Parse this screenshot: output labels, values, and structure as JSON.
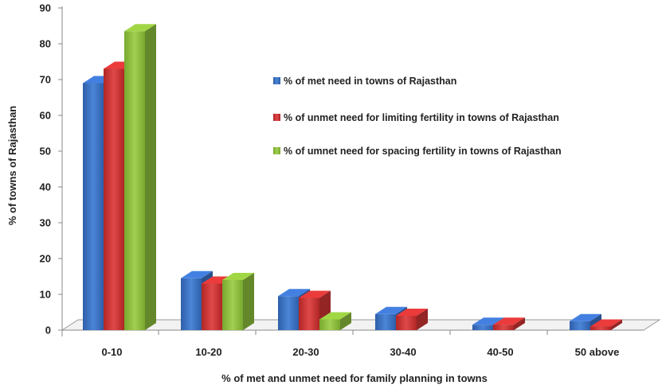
{
  "chart_data": {
    "type": "bar",
    "style": "3d-clustered-column",
    "title": "",
    "xlabel": "% of met and unmet need for family planning in towns",
    "ylabel": "% of towns of Rajasthan",
    "ylim": [
      0,
      90
    ],
    "yticks": [
      0,
      10,
      20,
      30,
      40,
      50,
      60,
      70,
      80,
      90
    ],
    "grid": false,
    "legend_position": "right",
    "categories": [
      "0-10",
      "10-20",
      "20-30",
      "30-40",
      "40-50",
      "50 above"
    ],
    "series": [
      {
        "name": "% of met need in towns of Rajasthan",
        "color": "#3a6fc4",
        "values": [
          69,
          14.5,
          9.5,
          4.5,
          1.5,
          2.5
        ]
      },
      {
        "name": "% of unmet need for limiting fertility in towns of Rajasthan",
        "color": "#cc3333",
        "values": [
          73,
          13,
          9,
          4,
          1.5,
          1
        ]
      },
      {
        "name": "% of umnet need for spacing  fertility in towns of Rajasthan",
        "color": "#8cbb3c",
        "values": [
          83.5,
          14,
          3,
          null,
          null,
          null
        ]
      }
    ]
  }
}
